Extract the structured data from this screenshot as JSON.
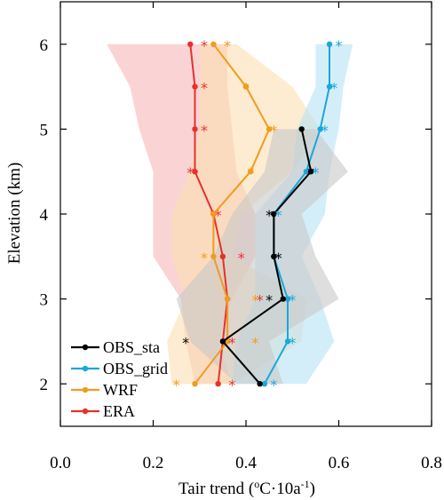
{
  "chart_data": {
    "type": "line",
    "xlabel": "Tair trend (",
    "xlabel_unit_1": "o",
    "xlabel_unit_2": "C·10a",
    "xlabel_unit_3": "-1",
    "xlabel_unit_4": ")",
    "ylabel": "Elevation (km)",
    "xlim": [
      0.0,
      0.8
    ],
    "ylim": [
      1.5,
      6.5
    ],
    "x_ticks": [
      0.0,
      0.2,
      0.4,
      0.6,
      0.8
    ],
    "x_tick_labels": [
      "0.0",
      "0.2",
      "0.4",
      "0.6",
      "0.8"
    ],
    "y_ticks": [
      2,
      3,
      4,
      5,
      6
    ],
    "y_tick_labels": [
      "2",
      "3",
      "4",
      "5",
      "6"
    ],
    "grid": false,
    "legend": "bottom-left",
    "series": [
      {
        "name": "ERA",
        "color": "#e8302b",
        "fill": "#f6b7b7",
        "lower": [
          [
            0.29,
            2.0
          ],
          [
            0.27,
            2.5
          ],
          [
            0.26,
            3.0
          ],
          [
            0.2,
            3.5
          ],
          [
            0.2,
            4.0
          ],
          [
            0.2,
            4.5
          ],
          [
            0.17,
            5.0
          ],
          [
            0.15,
            5.5
          ],
          [
            0.1,
            6.0
          ]
        ],
        "upper": [
          [
            0.37,
            2.0
          ],
          [
            0.34,
            2.5
          ],
          [
            0.37,
            3.0
          ],
          [
            0.42,
            3.5
          ],
          [
            0.42,
            4.0
          ],
          [
            0.38,
            4.5
          ],
          [
            0.37,
            5.0
          ],
          [
            0.36,
            5.5
          ],
          [
            0.36,
            6.0
          ]
        ],
        "points": [
          [
            0.34,
            2.0
          ],
          [
            0.35,
            2.5
          ],
          [
            0.36,
            3.0
          ],
          [
            0.35,
            3.5
          ],
          [
            0.33,
            4.0
          ],
          [
            0.29,
            4.5
          ],
          [
            0.29,
            5.0
          ],
          [
            0.29,
            5.5
          ],
          [
            0.28,
            6.0
          ]
        ],
        "stars": [
          [
            0.37,
            2.0
          ],
          [
            0.37,
            2.5
          ],
          [
            0.43,
            3.0
          ],
          [
            0.39,
            3.5
          ],
          [
            0.34,
            4.0
          ],
          [
            0.28,
            4.5
          ],
          [
            0.31,
            5.0
          ],
          [
            0.31,
            5.5
          ],
          [
            0.31,
            6.0
          ]
        ]
      },
      {
        "name": "WRF",
        "color": "#f29b1d",
        "fill": "#fbe0b3",
        "lower": [
          [
            0.24,
            2.0
          ],
          [
            0.23,
            2.5
          ],
          [
            0.27,
            3.0
          ],
          [
            0.24,
            3.5
          ],
          [
            0.24,
            4.0
          ],
          [
            0.28,
            4.5
          ],
          [
            0.3,
            5.0
          ],
          [
            0.3,
            5.5
          ],
          [
            0.3,
            6.0
          ]
        ],
        "upper": [
          [
            0.37,
            2.0
          ],
          [
            0.52,
            2.5
          ],
          [
            0.53,
            3.0
          ],
          [
            0.37,
            3.5
          ],
          [
            0.39,
            4.0
          ],
          [
            0.5,
            4.5
          ],
          [
            0.56,
            5.0
          ],
          [
            0.5,
            5.5
          ],
          [
            0.38,
            6.0
          ]
        ],
        "points": [
          [
            0.29,
            2.0
          ],
          [
            0.36,
            2.5
          ],
          [
            0.36,
            3.0
          ],
          [
            0.33,
            3.5
          ],
          [
            0.33,
            4.0
          ],
          [
            0.41,
            4.5
          ],
          [
            0.45,
            5.0
          ],
          [
            0.4,
            5.5
          ],
          [
            0.33,
            6.0
          ]
        ],
        "stars": [
          [
            0.25,
            2.0
          ],
          [
            0.42,
            2.5
          ],
          [
            0.42,
            3.0
          ],
          [
            0.31,
            3.5
          ],
          [
            0.33,
            4.0
          ],
          [
            0.41,
            4.5
          ],
          [
            0.46,
            5.0
          ],
          [
            0.4,
            5.5
          ],
          [
            0.36,
            6.0
          ]
        ]
      },
      {
        "name": "OBS_grid",
        "color": "#1aa7d9",
        "fill": "#b8e3f5",
        "lower": [
          [
            0.37,
            2.0
          ],
          [
            0.38,
            2.5
          ],
          [
            0.42,
            3.0
          ],
          [
            0.42,
            3.5
          ],
          [
            0.42,
            4.0
          ],
          [
            0.5,
            4.5
          ],
          [
            0.51,
            5.0
          ],
          [
            0.55,
            5.5
          ],
          [
            0.55,
            6.0
          ]
        ],
        "upper": [
          [
            0.53,
            2.0
          ],
          [
            0.59,
            2.5
          ],
          [
            0.56,
            3.0
          ],
          [
            0.52,
            3.5
          ],
          [
            0.57,
            4.0
          ],
          [
            0.58,
            4.5
          ],
          [
            0.6,
            5.0
          ],
          [
            0.61,
            5.5
          ],
          [
            0.63,
            6.0
          ]
        ],
        "points": [
          [
            0.44,
            2.0
          ],
          [
            0.49,
            2.5
          ],
          [
            0.49,
            3.0
          ],
          [
            0.46,
            3.5
          ],
          [
            0.46,
            4.0
          ],
          [
            0.53,
            4.5
          ],
          [
            0.56,
            5.0
          ],
          [
            0.58,
            5.5
          ],
          [
            0.58,
            6.0
          ]
        ],
        "stars": [
          [
            0.46,
            2.0
          ],
          [
            0.5,
            2.5
          ],
          [
            0.5,
            3.0
          ],
          [
            0.47,
            3.5
          ],
          [
            0.47,
            4.0
          ],
          [
            0.55,
            4.5
          ],
          [
            0.57,
            5.0
          ],
          [
            0.59,
            5.5
          ],
          [
            0.6,
            6.0
          ]
        ]
      },
      {
        "name": "OBS_sta",
        "color": "#000000",
        "fill": "#c8c8c8",
        "lower": [
          [
            0.38,
            2.0
          ],
          [
            0.28,
            2.5
          ],
          [
            0.25,
            3.0
          ],
          [
            0.33,
            3.5
          ],
          [
            0.37,
            4.0
          ],
          [
            0.44,
            4.5
          ],
          [
            0.46,
            5.0
          ]
        ],
        "upper": [
          [
            0.48,
            2.0
          ],
          [
            0.45,
            2.5
          ],
          [
            0.6,
            3.0
          ],
          [
            0.55,
            3.5
          ],
          [
            0.52,
            4.0
          ],
          [
            0.62,
            4.5
          ],
          [
            0.55,
            5.0
          ]
        ],
        "points": [
          [
            0.43,
            2.0
          ],
          [
            0.35,
            2.5
          ],
          [
            0.48,
            3.0
          ],
          [
            0.46,
            3.5
          ],
          [
            0.46,
            4.0
          ],
          [
            0.54,
            4.5
          ],
          [
            0.52,
            5.0
          ]
        ],
        "stars": [
          [
            0.27,
            2.5
          ],
          [
            0.45,
            3.0
          ],
          [
            0.47,
            3.5
          ],
          [
            0.45,
            4.0
          ],
          [
            0.54,
            4.5
          ]
        ]
      }
    ],
    "legend_order": [
      "OBS_sta",
      "OBS_grid",
      "WRF",
      "ERA"
    ],
    "series_draw_order": [
      "ERA",
      "WRF",
      "OBS_grid",
      "OBS_sta"
    ]
  }
}
